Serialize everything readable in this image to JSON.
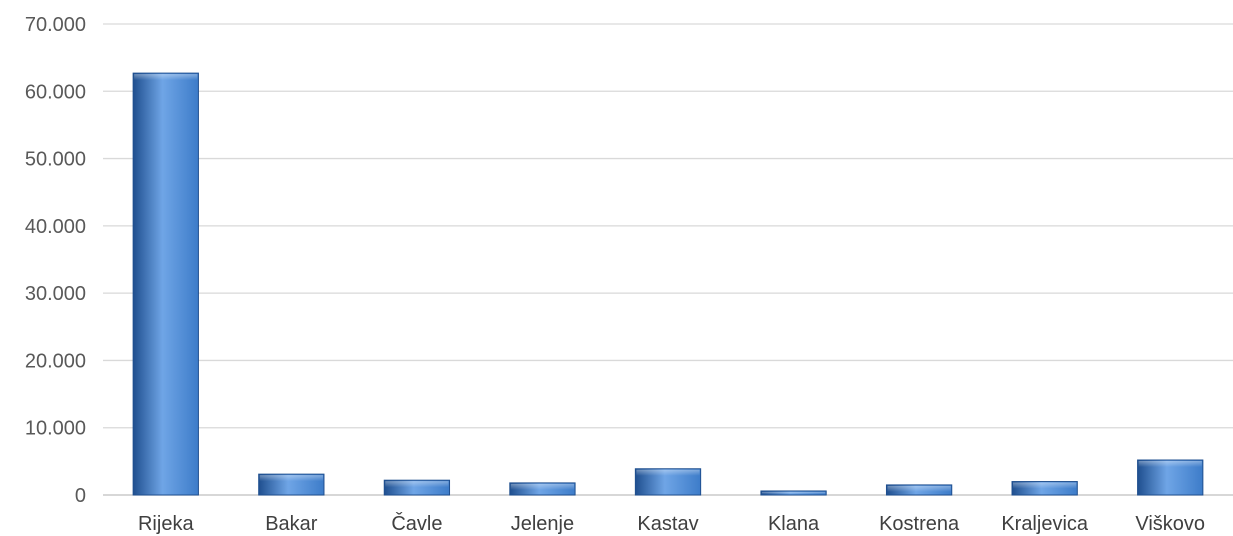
{
  "chart_data": {
    "type": "bar",
    "title": "",
    "xlabel": "",
    "ylabel": "",
    "categories": [
      "Rijeka",
      "Bakar",
      "Čavle",
      "Jelenje",
      "Kastav",
      "Klana",
      "Kostrena",
      "Kraljevica",
      "Viškovo"
    ],
    "values": [
      62700,
      3100,
      2200,
      1800,
      3900,
      600,
      1500,
      2000,
      5200
    ],
    "ylim": [
      0,
      70000
    ],
    "yticks": [
      0,
      10000,
      20000,
      30000,
      40000,
      50000,
      60000,
      70000
    ],
    "ytick_labels": [
      "0",
      "10.000",
      "20.000",
      "30.000",
      "40.000",
      "50.000",
      "60.000",
      "70.000"
    ],
    "grid": true,
    "legend": "none",
    "bar_color": "#3d7cc9",
    "bar_color_dark": "#1f4f8f",
    "bar_color_light": "#6fa5e6"
  }
}
